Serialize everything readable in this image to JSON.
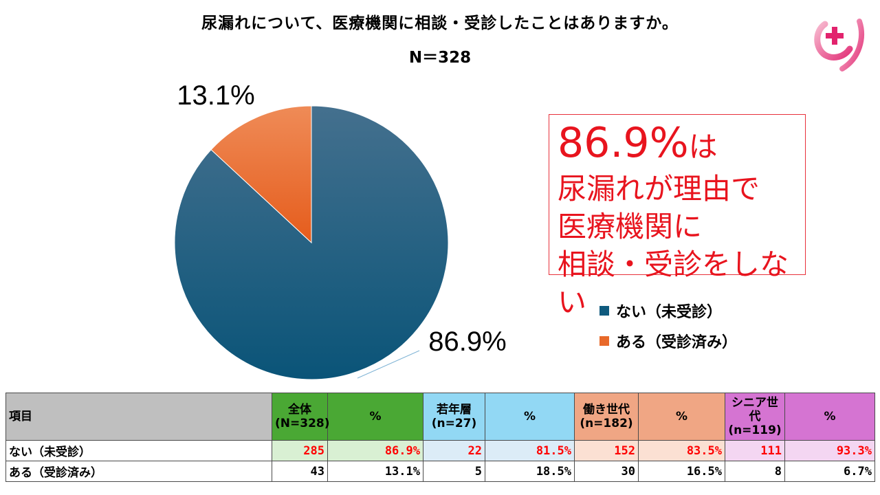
{
  "title": "尿漏れについて、医療機関に相談・受診したことはありますか。",
  "subtitle": "N＝328",
  "logo_icon": "pink-cross-logo",
  "chart_data": {
    "type": "pie",
    "title": "尿漏れについて、医療機関に相談・受診したことはありますか。",
    "subtitle": "N＝328",
    "slices": [
      {
        "label": "ない（未受診）",
        "value": 86.9,
        "display": "86.9%",
        "color": "#0f5a7e"
      },
      {
        "label": "ある（受診済み）",
        "value": 13.1,
        "display": "13.1%",
        "color": "#e8692a"
      }
    ],
    "legend_position": "right"
  },
  "callout": {
    "big": "86.9%",
    "suffix": "は",
    "line1": "尿漏れが理由で",
    "line2": "医療機関に",
    "line3": "相談・受診をしない"
  },
  "legend": [
    {
      "label": "ない（未受診）",
      "color": "#0f5a7e"
    },
    {
      "label": "ある（受診済み）",
      "color": "#e8692a"
    }
  ],
  "table": {
    "item_header": "項目",
    "groups": [
      {
        "name": "全体",
        "n": "(N=328)",
        "pct_header": "%",
        "color": "#4aa834",
        "light": "#d9f0d3"
      },
      {
        "name": "若年層",
        "n": "(n=27)",
        "pct_header": "%",
        "color": "#92d8f4",
        "light": "#dcecf7"
      },
      {
        "name": "働き世代",
        "n": "(n=182)",
        "pct_header": "%",
        "color": "#f0a684",
        "light": "#fbe0d3"
      },
      {
        "name": "シニア世代",
        "n": "(n=119)",
        "pct_header": "%",
        "color": "#d574d2",
        "light": "#f4d6f2"
      }
    ],
    "rows": [
      {
        "label": "ない（未受診）",
        "values": [
          "285",
          "86.9%",
          "22",
          "81.5%",
          "152",
          "83.5%",
          "111",
          "93.3%"
        ]
      },
      {
        "label": "ある（受診済み）",
        "values": [
          "43",
          "13.1%",
          "5",
          "18.5%",
          "30",
          "16.5%",
          "8",
          "6.7%"
        ]
      }
    ]
  }
}
